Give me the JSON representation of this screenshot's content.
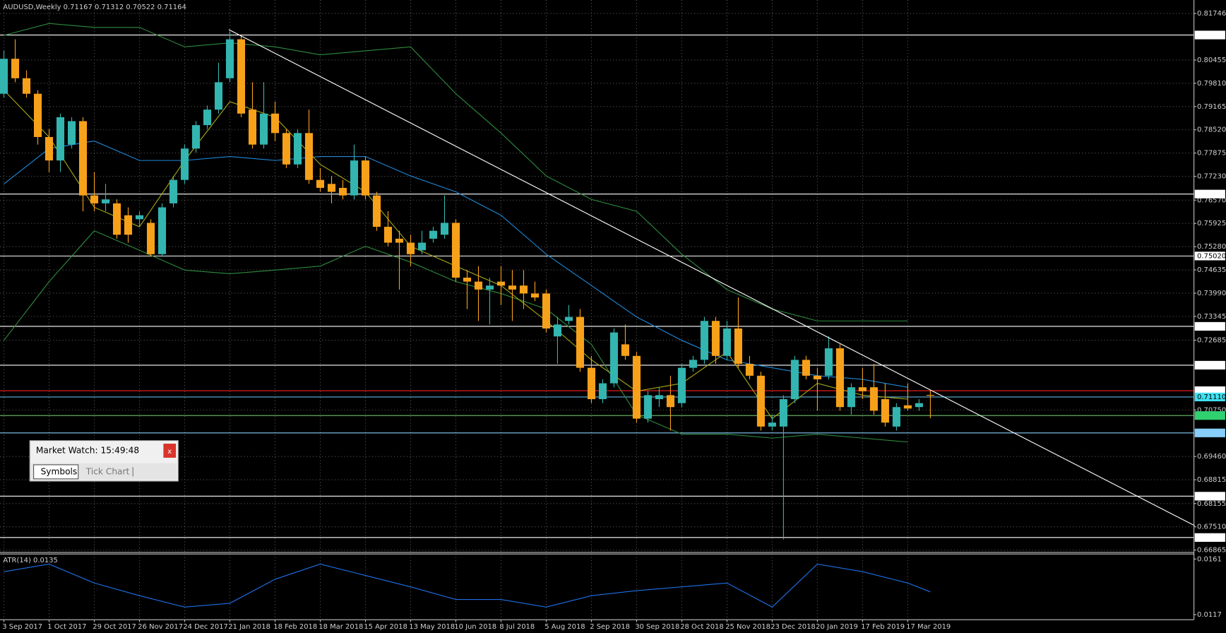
{
  "chart_data": {
    "type": "candlestick",
    "title": "AUDUSD,Weekly  0.71167 0.71312 0.70522 0.71164",
    "bull_color": "#33b5b0",
    "bear_color": "#f7a11a",
    "grid": true,
    "categories": [
      "3 Sep 2017",
      null,
      null,
      null,
      "1 Oct 2017",
      null,
      null,
      null,
      "29 Oct 2017",
      null,
      null,
      null,
      "26 Nov 2017",
      null,
      null,
      null,
      "24 Dec 2017",
      null,
      null,
      null,
      "21 Jan 2018",
      null,
      null,
      null,
      "18 Feb 2018",
      null,
      null,
      null,
      "18 Mar 2018",
      null,
      null,
      null,
      "15 Apr 2018",
      null,
      null,
      null,
      "13 May 2018",
      null,
      null,
      null,
      "10 Jun 2018",
      null,
      null,
      null,
      "8 Jul 2018",
      null,
      null,
      null,
      "5 Aug 2018",
      null,
      null,
      null,
      "2 Sep 2018",
      null,
      null,
      null,
      "30 Sep 2018",
      null,
      null,
      null,
      "28 Oct 2018",
      null,
      null,
      null,
      "25 Nov 2018",
      null,
      null,
      null,
      "23 Dec 2018",
      null,
      null,
      null,
      "20 Jan 2019",
      null,
      null,
      null,
      "17 Feb 2019",
      null,
      null,
      null,
      "17 Mar 2019",
      null,
      null
    ],
    "candles": [
      {
        "o": 0.7952,
        "h": 0.8071,
        "l": 0.7941,
        "c": 0.8049
      },
      {
        "o": 0.8049,
        "h": 0.8103,
        "l": 0.7984,
        "c": 0.7995
      },
      {
        "o": 0.7995,
        "h": 0.8017,
        "l": 0.7941,
        "c": 0.7952
      },
      {
        "o": 0.7952,
        "h": 0.7962,
        "l": 0.7811,
        "c": 0.7832
      },
      {
        "o": 0.7832,
        "h": 0.7854,
        "l": 0.7735,
        "c": 0.7767
      },
      {
        "o": 0.7767,
        "h": 0.7897,
        "l": 0.7735,
        "c": 0.7887
      },
      {
        "o": 0.7811,
        "h": 0.7887,
        "l": 0.78,
        "c": 0.7876
      },
      {
        "o": 0.7876,
        "h": 0.7887,
        "l": 0.7626,
        "c": 0.767
      },
      {
        "o": 0.767,
        "h": 0.7735,
        "l": 0.7626,
        "c": 0.7648
      },
      {
        "o": 0.7648,
        "h": 0.7702,
        "l": 0.7626,
        "c": 0.7659
      },
      {
        "o": 0.7648,
        "h": 0.7659,
        "l": 0.755,
        "c": 0.7561
      },
      {
        "o": 0.7615,
        "h": 0.7637,
        "l": 0.7539,
        "c": 0.7561
      },
      {
        "o": 0.7604,
        "h": 0.7626,
        "l": 0.7583,
        "c": 0.7615
      },
      {
        "o": 0.7594,
        "h": 0.7604,
        "l": 0.75,
        "c": 0.7507
      },
      {
        "o": 0.7507,
        "h": 0.7648,
        "l": 0.75,
        "c": 0.7637
      },
      {
        "o": 0.7648,
        "h": 0.7724,
        "l": 0.7637,
        "c": 0.7713
      },
      {
        "o": 0.7713,
        "h": 0.7811,
        "l": 0.7702,
        "c": 0.78
      },
      {
        "o": 0.78,
        "h": 0.7876,
        "l": 0.7789,
        "c": 0.7865
      },
      {
        "o": 0.7865,
        "h": 0.7919,
        "l": 0.7854,
        "c": 0.7908
      },
      {
        "o": 0.7908,
        "h": 0.8038,
        "l": 0.7897,
        "c": 0.7984
      },
      {
        "o": 0.7995,
        "h": 0.8125,
        "l": 0.7984,
        "c": 0.8103
      },
      {
        "o": 0.8103,
        "h": 0.8114,
        "l": 0.7887,
        "c": 0.7897
      },
      {
        "o": 0.7908,
        "h": 0.7984,
        "l": 0.78,
        "c": 0.7811
      },
      {
        "o": 0.7811,
        "h": 0.7984,
        "l": 0.78,
        "c": 0.7897
      },
      {
        "o": 0.7897,
        "h": 0.793,
        "l": 0.7821,
        "c": 0.7843
      },
      {
        "o": 0.7843,
        "h": 0.7854,
        "l": 0.7746,
        "c": 0.7756
      },
      {
        "o": 0.7756,
        "h": 0.7854,
        "l": 0.7746,
        "c": 0.7843
      },
      {
        "o": 0.7843,
        "h": 0.7908,
        "l": 0.7702,
        "c": 0.7713
      },
      {
        "o": 0.7713,
        "h": 0.7746,
        "l": 0.768,
        "c": 0.7691
      },
      {
        "o": 0.7702,
        "h": 0.7724,
        "l": 0.7648,
        "c": 0.768
      },
      {
        "o": 0.7691,
        "h": 0.7713,
        "l": 0.7659,
        "c": 0.767
      },
      {
        "o": 0.767,
        "h": 0.7811,
        "l": 0.7659,
        "c": 0.7767
      },
      {
        "o": 0.7767,
        "h": 0.7778,
        "l": 0.7659,
        "c": 0.767
      },
      {
        "o": 0.767,
        "h": 0.768,
        "l": 0.7572,
        "c": 0.7583
      },
      {
        "o": 0.7583,
        "h": 0.7626,
        "l": 0.7529,
        "c": 0.7539
      },
      {
        "o": 0.755,
        "h": 0.7572,
        "l": 0.7409,
        "c": 0.7539
      },
      {
        "o": 0.7539,
        "h": 0.7561,
        "l": 0.7474,
        "c": 0.7507
      },
      {
        "o": 0.7518,
        "h": 0.7572,
        "l": 0.7507,
        "c": 0.7539
      },
      {
        "o": 0.755,
        "h": 0.7583,
        "l": 0.7539,
        "c": 0.7572
      },
      {
        "o": 0.7561,
        "h": 0.767,
        "l": 0.755,
        "c": 0.7594
      },
      {
        "o": 0.7594,
        "h": 0.7604,
        "l": 0.7431,
        "c": 0.7442
      },
      {
        "o": 0.7442,
        "h": 0.7463,
        "l": 0.7355,
        "c": 0.7431
      },
      {
        "o": 0.7431,
        "h": 0.7474,
        "l": 0.7322,
        "c": 0.7409
      },
      {
        "o": 0.7409,
        "h": 0.7442,
        "l": 0.7312,
        "c": 0.742
      },
      {
        "o": 0.7431,
        "h": 0.7474,
        "l": 0.7366,
        "c": 0.742
      },
      {
        "o": 0.742,
        "h": 0.7463,
        "l": 0.7322,
        "c": 0.7409
      },
      {
        "o": 0.742,
        "h": 0.7463,
        "l": 0.7355,
        "c": 0.7398
      },
      {
        "o": 0.7398,
        "h": 0.7431,
        "l": 0.7377,
        "c": 0.7387
      },
      {
        "o": 0.7398,
        "h": 0.7409,
        "l": 0.729,
        "c": 0.7301
      },
      {
        "o": 0.7279,
        "h": 0.7333,
        "l": 0.7203,
        "c": 0.7312
      },
      {
        "o": 0.7322,
        "h": 0.7366,
        "l": 0.7312,
        "c": 0.7333
      },
      {
        "o": 0.7333,
        "h": 0.7355,
        "l": 0.7181,
        "c": 0.7192
      },
      {
        "o": 0.7192,
        "h": 0.7225,
        "l": 0.7094,
        "c": 0.7105
      },
      {
        "o": 0.7105,
        "h": 0.716,
        "l": 0.7094,
        "c": 0.7149
      },
      {
        "o": 0.7149,
        "h": 0.7301,
        "l": 0.7138,
        "c": 0.729
      },
      {
        "o": 0.7257,
        "h": 0.7312,
        "l": 0.7214,
        "c": 0.7225
      },
      {
        "o": 0.7225,
        "h": 0.7236,
        "l": 0.704,
        "c": 0.7051
      },
      {
        "o": 0.7051,
        "h": 0.7127,
        "l": 0.704,
        "c": 0.7116
      },
      {
        "o": 0.7105,
        "h": 0.7138,
        "l": 0.7083,
        "c": 0.7116
      },
      {
        "o": 0.7116,
        "h": 0.717,
        "l": 0.7018,
        "c": 0.7083
      },
      {
        "o": 0.7094,
        "h": 0.7203,
        "l": 0.7083,
        "c": 0.7192
      },
      {
        "o": 0.7192,
        "h": 0.7225,
        "l": 0.7181,
        "c": 0.7214
      },
      {
        "o": 0.7214,
        "h": 0.7333,
        "l": 0.7203,
        "c": 0.7322
      },
      {
        "o": 0.7322,
        "h": 0.7333,
        "l": 0.7203,
        "c": 0.7225
      },
      {
        "o": 0.7225,
        "h": 0.7322,
        "l": 0.7214,
        "c": 0.7301
      },
      {
        "o": 0.7301,
        "h": 0.7387,
        "l": 0.7192,
        "c": 0.7203
      },
      {
        "o": 0.7203,
        "h": 0.7225,
        "l": 0.716,
        "c": 0.717
      },
      {
        "o": 0.717,
        "h": 0.7181,
        "l": 0.7018,
        "c": 0.7029
      },
      {
        "o": 0.7029,
        "h": 0.7062,
        "l": 0.7018,
        "c": 0.704
      },
      {
        "o": 0.7029,
        "h": 0.7116,
        "l": 0.6716,
        "c": 0.7105
      },
      {
        "o": 0.7105,
        "h": 0.7225,
        "l": 0.7094,
        "c": 0.7214
      },
      {
        "o": 0.7214,
        "h": 0.7225,
        "l": 0.716,
        "c": 0.717
      },
      {
        "o": 0.717,
        "h": 0.7192,
        "l": 0.7073,
        "c": 0.716
      },
      {
        "o": 0.717,
        "h": 0.7279,
        "l": 0.716,
        "c": 0.7246
      },
      {
        "o": 0.7246,
        "h": 0.7257,
        "l": 0.7073,
        "c": 0.7083
      },
      {
        "o": 0.7083,
        "h": 0.7149,
        "l": 0.7062,
        "c": 0.7138
      },
      {
        "o": 0.7138,
        "h": 0.7192,
        "l": 0.7105,
        "c": 0.7127
      },
      {
        "o": 0.7138,
        "h": 0.7203,
        "l": 0.7062,
        "c": 0.7073
      },
      {
        "o": 0.7105,
        "h": 0.7149,
        "l": 0.7029,
        "c": 0.704
      },
      {
        "o": 0.7029,
        "h": 0.7094,
        "l": 0.7018,
        "c": 0.7083
      },
      {
        "o": 0.7088,
        "h": 0.7149,
        "l": 0.7073,
        "c": 0.7079
      },
      {
        "o": 0.7083,
        "h": 0.7105,
        "l": 0.7073,
        "c": 0.7094
      },
      {
        "o": 0.71167,
        "h": 0.71312,
        "l": 0.70522,
        "c": 0.71164
      }
    ],
    "indicators": [
      {
        "color": "#2e8b3e",
        "x": [
          0,
          4,
          8,
          12,
          16,
          20,
          24,
          28,
          32,
          36,
          40,
          44,
          48,
          52,
          56,
          60,
          64,
          68,
          72,
          76,
          80
        ],
        "values": [
          0.8114,
          0.8147,
          0.8136,
          0.8136,
          0.8082,
          0.8093,
          0.8082,
          0.806,
          0.8071,
          0.8082,
          0.7952,
          0.7843,
          0.7724,
          0.7659,
          0.7626,
          0.7507,
          0.7409,
          0.7355,
          0.7322,
          0.7322,
          0.7322
        ]
      },
      {
        "color": "#2e8b3e",
        "x": [
          0,
          4,
          8,
          12,
          16,
          20,
          24,
          28,
          32,
          36,
          40,
          44,
          48,
          52,
          56,
          60,
          64,
          68,
          72,
          76,
          80
        ],
        "values": [
          0.7268,
          0.7431,
          0.7572,
          0.7518,
          0.7463,
          0.7453,
          0.7463,
          0.7474,
          0.7529,
          0.7485,
          0.7431,
          0.7398,
          0.7355,
          0.7257,
          0.7062,
          0.7008,
          0.7008,
          0.6997,
          0.7008,
          0.6997,
          0.6986
        ]
      },
      {
        "color": "#1e88d8",
        "x": [
          0,
          4,
          8,
          12,
          16,
          20,
          24,
          28,
          32,
          36,
          40,
          44,
          48,
          52,
          56,
          60,
          64,
          68,
          72,
          76,
          80
        ],
        "values": [
          0.7702,
          0.78,
          0.7821,
          0.7767,
          0.7767,
          0.7778,
          0.7767,
          0.7778,
          0.7778,
          0.7724,
          0.768,
          0.7615,
          0.7507,
          0.742,
          0.7333,
          0.7268,
          0.7214,
          0.7192,
          0.717,
          0.716,
          0.7138
        ]
      },
      {
        "color": "#a8a818",
        "x": [
          0,
          4,
          8,
          12,
          16,
          20,
          24,
          28,
          32,
          36,
          40,
          44,
          48,
          52,
          56,
          60,
          64,
          68,
          72,
          76,
          80
        ],
        "values": [
          0.7962,
          0.7832,
          0.7637,
          0.7583,
          0.7767,
          0.793,
          0.7887,
          0.7756,
          0.768,
          0.7529,
          0.7474,
          0.742,
          0.7322,
          0.7214,
          0.7127,
          0.7149,
          0.7236,
          0.7051,
          0.7149,
          0.7116,
          0.7105
        ]
      }
    ],
    "trendline": {
      "color": "#ffffff",
      "x": [
        19.9,
        105.4
      ],
      "values": [
        0.813,
        0.6754
      ]
    },
    "ylim": [
      0.668,
      0.8212
    ],
    "yticks": [
      0.81746,
      0.80455,
      {
        "value": 0.7981,
        "label": "0.79810"
      },
      0.79165,
      {
        "value": 0.7852,
        "label": "0.78520"
      },
      0.77875,
      {
        "value": 0.7723,
        "label": "0.77230"
      },
      {
        "value": 0.7657,
        "label": "0.76570"
      },
      0.75925,
      {
        "value": 0.7528,
        "label": "0.75280"
      },
      0.74635,
      {
        "value": 0.7399,
        "label": "0.73990"
      },
      0.73345,
      0.72685,
      {
        "value": 0.7075,
        "label": "0.70750"
      },
      {
        "value": 0.6946,
        "label": "0.69460"
      },
      0.68815,
      0.68155,
      {
        "value": 0.6751,
        "label": "0.67510"
      },
      0.66865
    ],
    "levels": [
      {
        "value": 0.81149,
        "color": "#ffffff",
        "box": "#ffffff"
      },
      {
        "value": 0.76738,
        "color": "#ffffff",
        "box": "#ffffff"
      },
      {
        "value": 0.7502,
        "label": "0.75020",
        "color": "#ffffff",
        "box": "#ffffff"
      },
      {
        "value": 0.73069,
        "color": "#ffffff",
        "box": "#ffffff"
      },
      {
        "value": 0.71992,
        "color": "#ffffff",
        "box": "#ffffff"
      },
      {
        "value": 0.71285,
        "color": "#ff2020",
        "box": "#ffffff"
      },
      {
        "value": 0.7111,
        "label": "0.71110",
        "color": "#5fb4d8",
        "box": "#40e0f0"
      },
      {
        "value": 0.70596,
        "color": "#70c070",
        "box": "#30d070"
      },
      {
        "value": 0.70114,
        "color": "#87cefa",
        "box": "#87cefa"
      },
      {
        "value": 0.68359,
        "color": "#ffffff",
        "box": "#ffffff"
      },
      {
        "value": 0.67213,
        "color": "#ffffff",
        "box": "#ffffff"
      }
    ],
    "atr": {
      "label": "ATR(14) 0.0135",
      "color": "#1e70e8",
      "x": [
        0,
        4,
        8,
        12,
        16,
        20,
        24,
        28,
        32,
        36,
        40,
        44,
        48,
        52,
        56,
        60,
        64,
        68,
        72,
        76,
        80,
        82
      ],
      "values": [
        0.0151,
        0.0157,
        0.0142,
        0.0132,
        0.0123,
        0.0126,
        0.0145,
        0.0157,
        0.0148,
        0.0139,
        0.0129,
        0.0129,
        0.0123,
        0.0132,
        0.0136,
        0.0139,
        0.0142,
        0.0123,
        0.0157,
        0.0151,
        0.0142,
        0.0135
      ],
      "y2lim": [
        0.0113,
        0.0165
      ],
      "y2ticks": [
        0.0161,
        0.0117
      ]
    },
    "market_watch": {
      "title": "Market Watch: 15:49:48",
      "close": "x",
      "tabs": [
        "Symbols",
        "Tick Chart"
      ]
    }
  }
}
